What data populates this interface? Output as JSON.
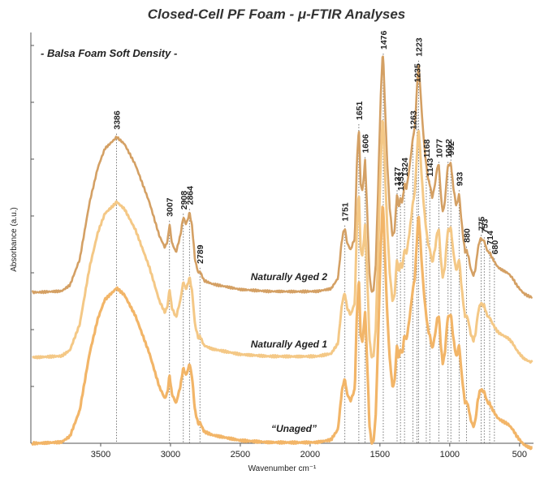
{
  "chart_data": {
    "type": "line",
    "title": "Closed-Cell PF Foam - μ-FTIR Analyses",
    "subtitle": "- Balsa Foam Soft Density  -",
    "xlabel": "Wavenumber cm⁻¹",
    "ylabel": "Absorbance (a.u.)",
    "xlim": [
      4000,
      400
    ],
    "x_ticks": [
      "3500",
      "3000",
      "2500",
      "2000",
      "1500",
      "1000",
      "500"
    ],
    "x_tick_values": [
      3500,
      3000,
      2500,
      2000,
      1500,
      1000,
      500
    ],
    "y_tick_count": 7,
    "series": [
      {
        "name": "Naturally Aged 2",
        "color": "#d4a064"
      },
      {
        "name": "Naturally Aged 1",
        "color": "#f4c886"
      },
      {
        "name": "“Unaged”",
        "color": "#f2b568"
      }
    ],
    "peaks": [
      {
        "label": "3386",
        "x": 3386
      },
      {
        "label": "3007",
        "x": 3007
      },
      {
        "label": "2908",
        "x": 2908
      },
      {
        "label": "2864",
        "x": 2864
      },
      {
        "label": "2789",
        "x": 2789
      },
      {
        "label": "1751",
        "x": 1751
      },
      {
        "label": "1651",
        "x": 1651
      },
      {
        "label": "1606",
        "x": 1606
      },
      {
        "label": "1476",
        "x": 1476
      },
      {
        "label": "1377",
        "x": 1377
      },
      {
        "label": "1353",
        "x": 1353
      },
      {
        "label": "1324",
        "x": 1324
      },
      {
        "label": "1263",
        "x": 1263
      },
      {
        "label": "1235",
        "x": 1235
      },
      {
        "label": "1223",
        "x": 1223
      },
      {
        "label": "1168",
        "x": 1168
      },
      {
        "label": "1143",
        "x": 1143
      },
      {
        "label": "1077",
        "x": 1077
      },
      {
        "label": "1012",
        "x": 1012
      },
      {
        "label": "992",
        "x": 992
      },
      {
        "label": "933",
        "x": 933
      },
      {
        "label": "880",
        "x": 880
      },
      {
        "label": "775",
        "x": 775
      },
      {
        "label": "753",
        "x": 753
      },
      {
        "label": "714",
        "x": 714
      },
      {
        "label": "680",
        "x": 680
      }
    ]
  }
}
